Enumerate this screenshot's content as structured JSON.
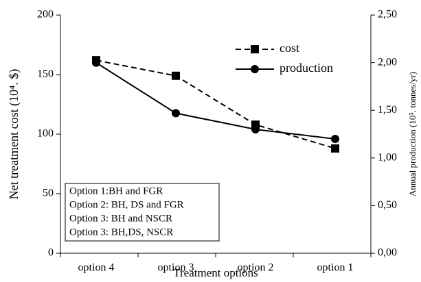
{
  "chart_data": {
    "type": "line",
    "xlabel": "Treatment options",
    "ylabel": "Net treatment cost (10⁴. $)",
    "y2label": "Annual production (10⁵. tonnes/yr)",
    "categories": [
      "option 4",
      "option 3",
      "option 2",
      "option 1"
    ],
    "series": [
      {
        "name": "cost",
        "color": "#000000",
        "line_style": "dashed",
        "marker": "square",
        "values": [
          162,
          149,
          108,
          88
        ]
      },
      {
        "name": "production",
        "color": "#000000",
        "line_style": "solid",
        "marker": "circle",
        "axis": "y2",
        "values": [
          2.0,
          1.47,
          1.3,
          1.2
        ]
      }
    ],
    "ylim": [
      0,
      200
    ],
    "yticks": [
      0,
      50,
      100,
      150,
      200
    ],
    "y2lim": [
      0,
      2.5
    ],
    "y2ticks": [
      {
        "value": 0,
        "label": "0,00"
      },
      {
        "value": 0.5,
        "label": "0,50"
      },
      {
        "value": 1,
        "label": "1,00"
      },
      {
        "value": 1.5,
        "label": "1,50"
      },
      {
        "value": 2,
        "label": "2,00"
      },
      {
        "value": 2.5,
        "label": "2,50"
      }
    ],
    "legend": "upper right",
    "annotations": [
      "Option 1:BH and FGR",
      "Option 2: BH, DS and FGR",
      "Option 3: BH and NSCR",
      "Option 3: BH,DS, NSCR"
    ]
  }
}
